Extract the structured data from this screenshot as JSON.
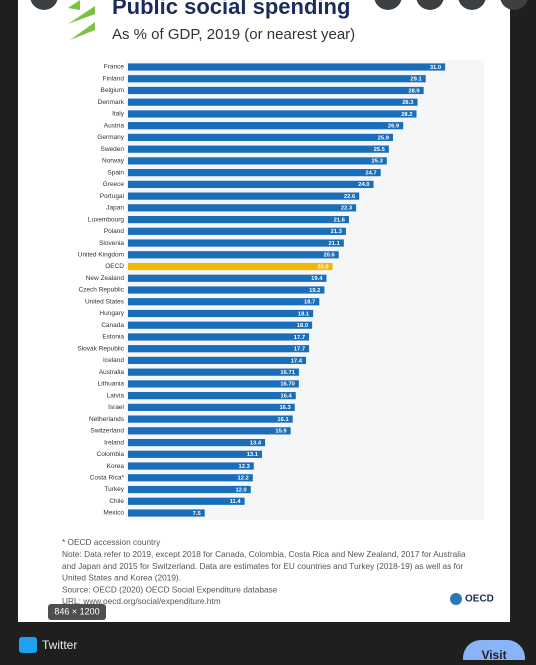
{
  "chart_data": {
    "type": "bar",
    "orientation": "horizontal",
    "title": "Public social spending",
    "subtitle": "As % of GDP, 2019 (or nearest year)",
    "categories": [
      "France",
      "Finland",
      "Belgium",
      "Denmark",
      "Italy",
      "Austria",
      "Germany",
      "Sweden",
      "Norway",
      "Spain",
      "Greece",
      "Portugal",
      "Japan",
      "Luxembourg",
      "Poland",
      "Slovenia",
      "United Kingdom",
      "OECD",
      "New Zealand",
      "Czech Republic",
      "United States",
      "Hungary",
      "Canada",
      "Estonia",
      "Slovak Republic",
      "Iceland",
      "Australia",
      "Lithuania",
      "Latvia",
      "Israel",
      "Netherlands",
      "Switzerland",
      "Ireland",
      "Colombia",
      "Korea",
      "Costa Rica*",
      "Turkey",
      "Chile",
      "Mexico"
    ],
    "values": [
      31.0,
      29.1,
      28.9,
      28.3,
      28.2,
      26.9,
      25.9,
      25.5,
      25.3,
      24.7,
      24.0,
      22.6,
      22.3,
      21.6,
      21.3,
      21.1,
      20.6,
      20.0,
      19.4,
      19.2,
      18.7,
      18.1,
      18.0,
      17.7,
      17.7,
      17.4,
      16.71,
      16.7,
      16.4,
      16.3,
      16.1,
      15.9,
      13.4,
      13.1,
      12.3,
      12.2,
      12.0,
      11.4,
      7.5
    ],
    "value_labels": [
      "31.0",
      "29.1",
      "28.9",
      "28.3",
      "28.2",
      "26.9",
      "25.9",
      "25.5",
      "25.3",
      "24.7",
      "24.0",
      "22.6",
      "22.3",
      "21.6",
      "21.3",
      "21.1",
      "20.6",
      "20.0",
      "19.4",
      "19.2",
      "18.7",
      "18.1",
      "18.0",
      "17.7",
      "17.7",
      "17.4",
      "16.71",
      "16.70",
      "16.4",
      "16.3",
      "16.1",
      "15.9",
      "13.4",
      "13.1",
      "12.3",
      "12.2",
      "12.0",
      "11.4",
      "7.5"
    ],
    "color": "#1a6db8",
    "highlight_color": "#f2b705",
    "highlight": 17,
    "notes": [
      "* OECD accession country",
      "Note: Data refer to 2019, except 2018 for Canada, Colombia, Costa Rica and New Zealand, 2017 for Australia",
      "and Japan and 2015 for Switzerland. Data are estimates for EU countries and Turkey (2018-19) as well as for",
      "United States and Korea (2019).",
      "Source: OECD (2020) OECD Social Expenditure database",
      "URL: www.oecd.org/social/expenditure.htm"
    ],
    "logo": "OECD"
  },
  "ui": {
    "image_size": "846 × 1200",
    "source": "Twitter",
    "visit": "Visit"
  }
}
